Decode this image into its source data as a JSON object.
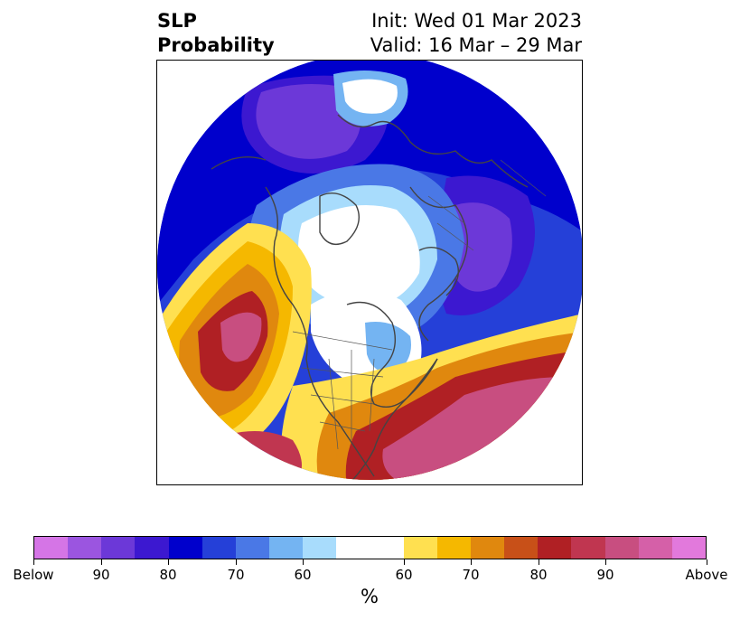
{
  "title": {
    "left_line1": "SLP",
    "left_line2": "Probability",
    "right_line1": "Init: Wed 01 Mar 2023",
    "right_line2": "Valid: 16 Mar – 29 Mar"
  },
  "colorbar": {
    "unit": "%",
    "colors": [
      "#d575e6",
      "#9b55e0",
      "#6c38d8",
      "#3c18d0",
      "#0000cc",
      "#2540d8",
      "#4a78e6",
      "#74b4f2",
      "#a8dcfc",
      "#ffffff",
      "#ffe050",
      "#f5b800",
      "#e0880e",
      "#c85018",
      "#b02024",
      "#c03650",
      "#c84e80",
      "#d560a8",
      "#e279dc"
    ],
    "tick_labels": [
      "Below",
      "90",
      "80",
      "70",
      "60",
      "60",
      "70",
      "80",
      "90",
      "Above"
    ]
  },
  "legend_categories": {
    "below": "Below",
    "above": "Above"
  }
}
